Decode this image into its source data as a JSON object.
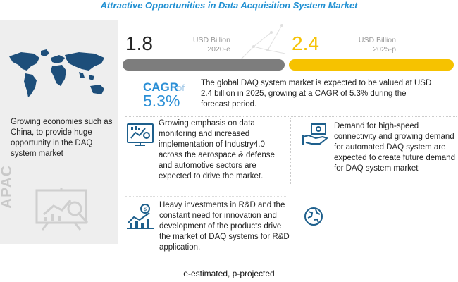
{
  "title": "Attractive Opportunities in Data Acquisition System Market",
  "stats": {
    "left": {
      "value": "1.8",
      "unit": "USD Billion",
      "year": "2020-e"
    },
    "right": {
      "value": "2.4",
      "unit": "USD Billion",
      "year": "2025-p"
    }
  },
  "cagr": {
    "label": "CAGR",
    "of": "of",
    "value": "5.3%"
  },
  "summary": "The global DAQ system market is expected to be valued at USD 2.4 billion in 2025, growing at a CAGR of 5.3% during the forecast period.",
  "left_panel": {
    "text": "Growing economies such as China, to provide huge opportunity in the DAQ system market",
    "region": "APAC"
  },
  "drivers": [
    {
      "icon": "dashboard-chart-icon",
      "text": "Growing emphasis on data monitoring and increased implementation of Industry4.0 across the aerospace & defense and automotive sectors are expected to drive the market."
    },
    {
      "icon": "hand-money-icon",
      "text": "Demand for high-speed connectivity and growing demand for automated DAQ system are expected to create future demand for DAQ system market"
    },
    {
      "icon": "investment-chart-icon",
      "text": "Heavy investments in R&D and the constant need for innovation and development of the products drive the market of DAQ systems for R&D application."
    },
    {
      "icon": "globe-icon",
      "text": ""
    }
  ],
  "footnote": "e-estimated, p-projected",
  "colors": {
    "title": "#1f8fd2",
    "bar_left": "#7d7d7d",
    "bar_right": "#f6c200",
    "cagr": "#2b8fd6",
    "icon": "#1d5f8c"
  }
}
